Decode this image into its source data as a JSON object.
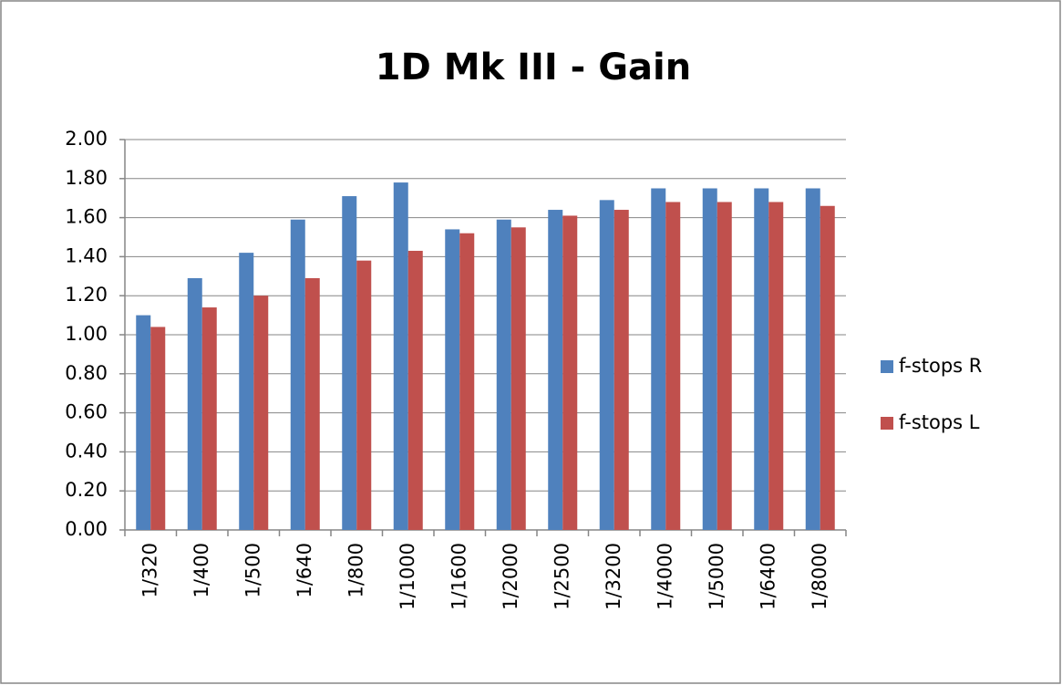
{
  "chart_data": {
    "type": "bar",
    "title": "1D Mk III - Gain",
    "categories": [
      "1/320",
      "1/400",
      "1/500",
      "1/640",
      "1/800",
      "1/1000",
      "1/1600",
      "1/2000",
      "1/2500",
      "1/3200",
      "1/4000",
      "1/5000",
      "1/6400",
      "1/8000"
    ],
    "series": [
      {
        "name": "f-stops R",
        "color": "#4f81bd",
        "values": [
          1.1,
          1.29,
          1.42,
          1.59,
          1.71,
          1.78,
          1.54,
          1.59,
          1.64,
          1.69,
          1.75,
          1.75,
          1.75,
          1.75
        ]
      },
      {
        "name": "f-stops L",
        "color": "#c0504d",
        "values": [
          1.04,
          1.14,
          1.2,
          1.29,
          1.38,
          1.43,
          1.52,
          1.55,
          1.61,
          1.64,
          1.68,
          1.68,
          1.68,
          1.66
        ]
      }
    ],
    "ylim": [
      0,
      2
    ],
    "yticks": [
      {
        "value": 0,
        "label": "0.00"
      },
      {
        "value": 0.2,
        "label": "0.20"
      },
      {
        "value": 0.4,
        "label": "0.40"
      },
      {
        "value": 0.6,
        "label": "0.60"
      },
      {
        "value": 0.8,
        "label": "0.80"
      },
      {
        "value": 1,
        "label": "1.00"
      },
      {
        "value": 1.2,
        "label": "1.20"
      },
      {
        "value": 1.4,
        "label": "1.40"
      },
      {
        "value": 1.6,
        "label": "1.60"
      },
      {
        "value": 1.8,
        "label": "1.80"
      },
      {
        "value": 2,
        "label": "2.00"
      }
    ],
    "grid": true,
    "legend": "right"
  }
}
